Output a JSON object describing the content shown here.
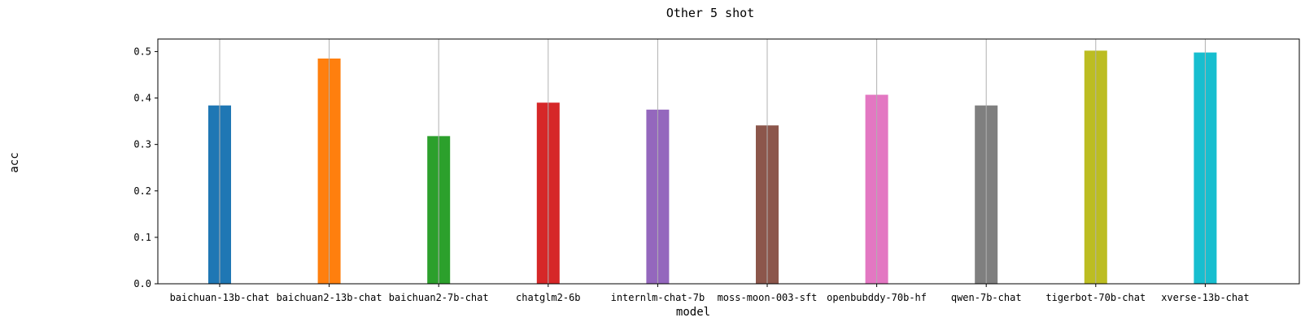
{
  "chart_data": {
    "type": "bar",
    "title": "Other 5 shot",
    "xlabel": "model",
    "ylabel": "acc",
    "categories": [
      "baichuan-13b-chat",
      "baichuan2-13b-chat",
      "baichuan2-7b-chat",
      "chatglm2-6b",
      "internlm-chat-7b",
      "moss-moon-003-sft",
      "openbubddy-70b-hf",
      "qwen-7b-chat",
      "tigerbot-70b-chat",
      "xverse-13b-chat"
    ],
    "values": [
      0.384,
      0.485,
      0.318,
      0.39,
      0.375,
      0.341,
      0.407,
      0.384,
      0.502,
      0.498
    ],
    "colors": [
      "#1f77b4",
      "#ff7f0e",
      "#2ca02c",
      "#d62728",
      "#9467bd",
      "#8c564b",
      "#e377c2",
      "#7f7f7f",
      "#bcbd22",
      "#17becf"
    ],
    "ylim": [
      0,
      0.527
    ],
    "yticks": [
      "0.0",
      "0.1",
      "0.2",
      "0.3",
      "0.4",
      "0.5"
    ],
    "grid": "x-axis vertical lines",
    "legend": "none"
  }
}
